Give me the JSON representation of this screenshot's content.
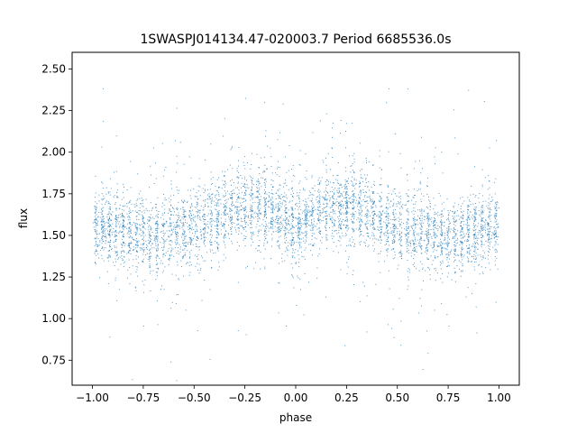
{
  "chart_data": {
    "type": "scatter",
    "title": "1SWASPJ014134.47-020003.7 Period 6685536.0s",
    "xlabel": "phase",
    "ylabel": "flux",
    "xlim": [
      -1.1,
      1.1
    ],
    "ylim": [
      0.6,
      2.6
    ],
    "xticks": [
      -1.0,
      -0.75,
      -0.5,
      -0.25,
      0.0,
      0.25,
      0.5,
      0.75,
      1.0
    ],
    "xtick_labels": [
      "−1.00",
      "−0.75",
      "−0.50",
      "−0.25",
      "0.00",
      "0.25",
      "0.50",
      "0.75",
      "1.00"
    ],
    "yticks": [
      0.75,
      1.0,
      1.25,
      1.5,
      1.75,
      2.0,
      2.25,
      2.5
    ],
    "ytick_labels": [
      "0.75",
      "1.00",
      "1.25",
      "1.50",
      "1.75",
      "2.00",
      "2.25",
      "2.50"
    ],
    "grid": false,
    "marker_color": "#1f77b4",
    "series": [
      {
        "phase_range": [
          -1.0,
          1.0
        ],
        "symmetric_about_zero": true,
        "flux_profile": {
          "phase": [
            0.0,
            0.05,
            0.1,
            0.15,
            0.2,
            0.25,
            0.3,
            0.35,
            0.4,
            0.45,
            0.5,
            0.55,
            0.6,
            0.65,
            0.7,
            0.75,
            0.8,
            0.85,
            0.9,
            0.95,
            1.0
          ],
          "median_flux": [
            1.55,
            1.6,
            1.63,
            1.66,
            1.68,
            1.68,
            1.68,
            1.65,
            1.6,
            1.57,
            1.54,
            1.53,
            1.52,
            1.51,
            1.5,
            1.5,
            1.51,
            1.52,
            1.53,
            1.54,
            1.55
          ]
        },
        "core_spread": 0.15,
        "outlier_range": [
          0.62,
          2.38
        ]
      }
    ]
  }
}
